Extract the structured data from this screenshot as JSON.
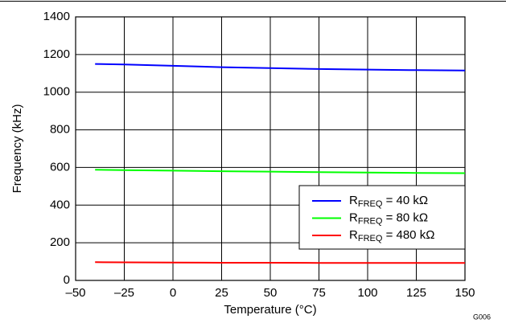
{
  "chart_data": {
    "type": "line",
    "x_label": "Temperature (°C)",
    "y_label": "Frequency (kHz)",
    "x": [
      -40,
      -25,
      0,
      25,
      50,
      75,
      100,
      125,
      150
    ],
    "series": [
      {
        "name": "RFREQ = 40 kΩ",
        "color": "#0000ff",
        "values": [
          1150,
          1147,
          1140,
          1133,
          1128,
          1123,
          1120,
          1117,
          1115
        ]
      },
      {
        "name": "RFREQ = 80 kΩ",
        "color": "#00ff00",
        "values": [
          588,
          586,
          583,
          580,
          578,
          575,
          573,
          571,
          570
        ]
      },
      {
        "name": "RFREQ = 480 kΩ",
        "color": "#ff0000",
        "values": [
          97,
          96,
          95,
          94,
          94,
          93,
          93,
          93,
          93
        ]
      }
    ],
    "xlim": [
      -50,
      150
    ],
    "xticks": [
      {
        "value": -50,
        "label": "–50"
      },
      {
        "value": -25,
        "label": "–25"
      },
      0,
      25,
      50,
      75,
      100,
      125,
      150
    ],
    "ylim": [
      0,
      1400
    ],
    "yticks": [
      0,
      200,
      400,
      600,
      800,
      1000,
      1200,
      1400
    ],
    "grid": true,
    "legend": "lower right",
    "annotation": "G006"
  }
}
